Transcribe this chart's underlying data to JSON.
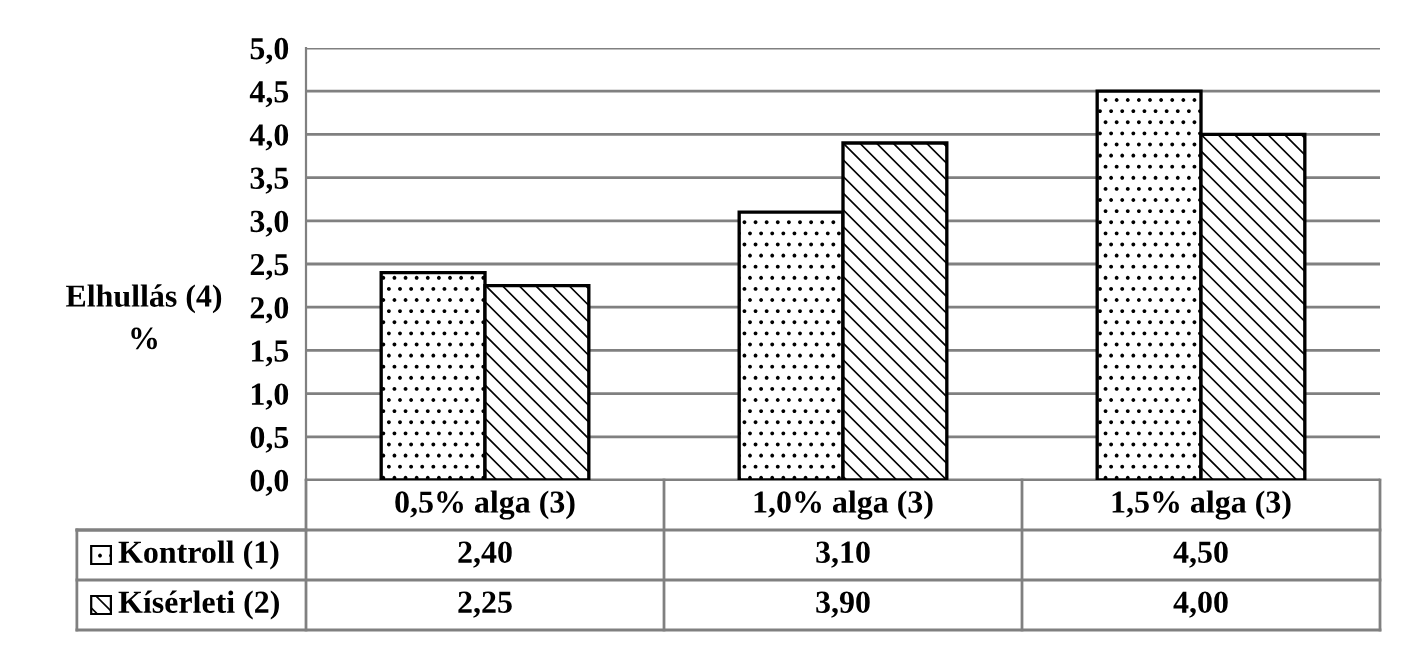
{
  "chart_data": {
    "type": "bar",
    "ylabel": "Elhullás (4)\n%",
    "categories": [
      "0,5% alga (3)",
      "1,0% alga (3)",
      "1,5% alga (3)"
    ],
    "series": [
      {
        "name": "Kontroll (1)",
        "color": "#000000",
        "values": [
          2.4,
          3.1,
          4.5
        ],
        "value_labels": [
          "2,40",
          "3,10",
          "4,50"
        ]
      },
      {
        "name": "Kísérleti (2)",
        "color": "#000000",
        "values": [
          2.25,
          3.9,
          4.0
        ],
        "value_labels": [
          "2,25",
          "3,90",
          "4,00"
        ]
      }
    ],
    "ylim": [
      0,
      5
    ],
    "yticks": [
      {
        "value": 0,
        "label": "0,0"
      },
      {
        "value": 0.5,
        "label": "0,5"
      },
      {
        "value": 1,
        "label": "1,0"
      },
      {
        "value": 1.5,
        "label": "1,5"
      },
      {
        "value": 2,
        "label": "2,0"
      },
      {
        "value": 2.5,
        "label": "2,5"
      },
      {
        "value": 3,
        "label": "3,0"
      },
      {
        "value": 3.5,
        "label": "3,5"
      },
      {
        "value": 4,
        "label": "4,0"
      },
      {
        "value": 4.5,
        "label": "4,5"
      },
      {
        "value": 5,
        "label": "5,0"
      }
    ],
    "grid": "y",
    "legend": "bottom left"
  }
}
